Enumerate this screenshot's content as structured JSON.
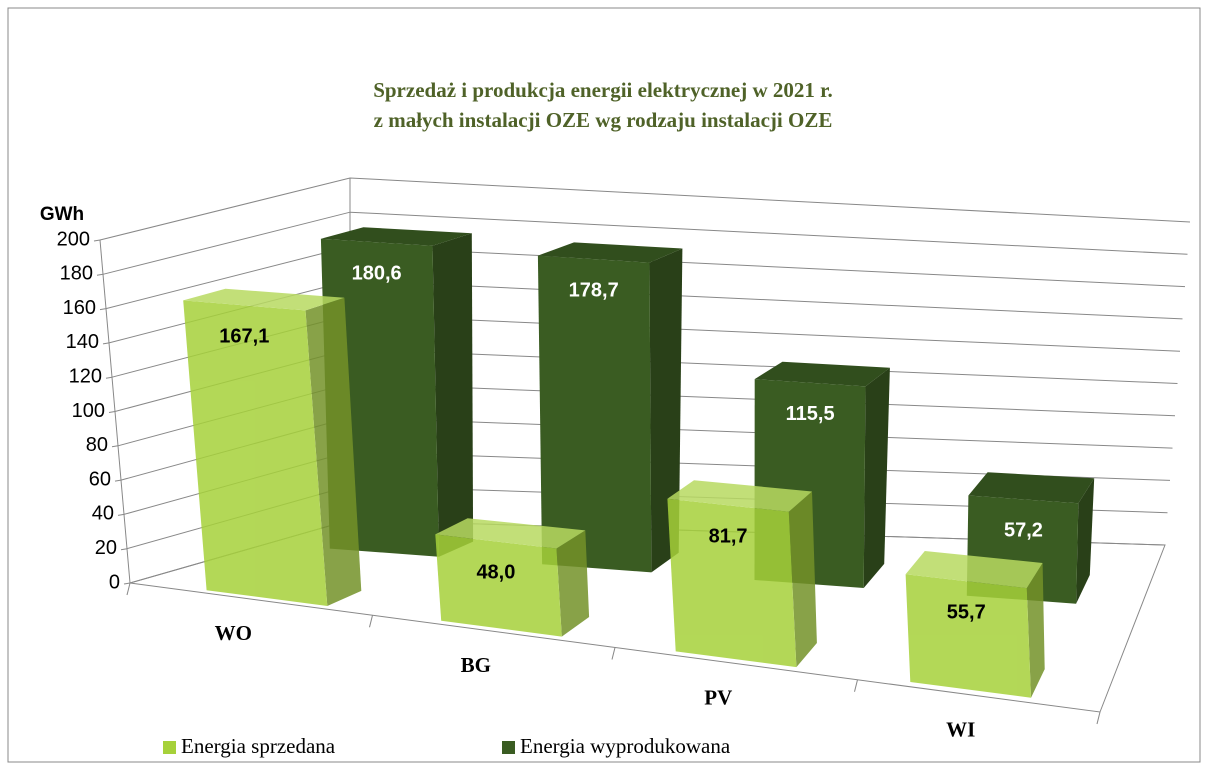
{
  "chart_data": {
    "type": "bar3d",
    "title": [
      "Sprzedaż i produkcja energii elektrycznej w 2021 r.",
      "z małych instalacji OZE wg rodzaju instalacji OZE"
    ],
    "y_label": "GWh",
    "categories": [
      "WO",
      "BG",
      "PV",
      "WI"
    ],
    "series": [
      {
        "name": "Energia sprzedana",
        "color": "#a6d13a",
        "values": [
          167.1,
          48.0,
          81.7,
          55.7
        ],
        "value_labels": [
          "167,1",
          "48,0",
          "81,7",
          "55,7"
        ]
      },
      {
        "name": "Energia wyprodukowana",
        "color": "#3a5c22",
        "values": [
          180.6,
          178.7,
          115.5,
          57.2
        ],
        "value_labels": [
          "180,6",
          "178,7",
          "115,5",
          "57,2"
        ]
      }
    ],
    "ylim": [
      0,
      200
    ],
    "yticks": [
      0,
      20,
      40,
      60,
      80,
      100,
      120,
      140,
      160,
      180,
      200
    ],
    "grid": true,
    "legend": "bottom"
  }
}
